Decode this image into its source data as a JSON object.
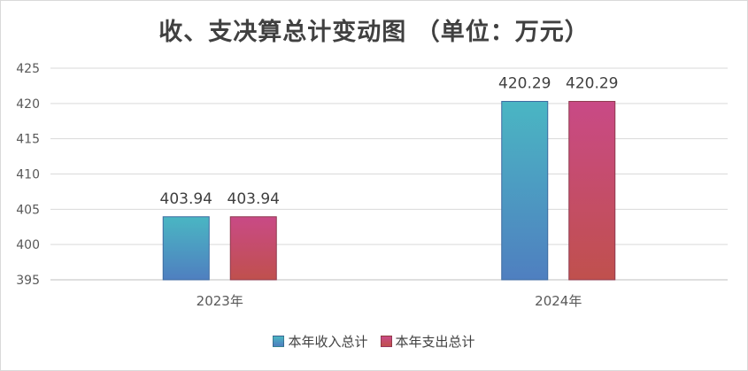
{
  "chart_data": {
    "type": "bar",
    "title": "收、支决算总计变动图 （单位：万元）",
    "categories": [
      "2023年",
      "2024年"
    ],
    "series": [
      {
        "name": "本年收入总计",
        "values": [
          403.94,
          420.29
        ],
        "labels": [
          "403.94",
          "420.29"
        ],
        "color_top": "#4ab6c3",
        "color_bottom": "#4f7fc0"
      },
      {
        "name": "本年支出总计",
        "values": [
          403.94,
          420.29
        ],
        "labels": [
          "403.94",
          "420.29"
        ],
        "color_top": "#c94a86",
        "color_bottom": "#c0504d"
      }
    ],
    "ylim": [
      395,
      425
    ],
    "yticks": [
      395,
      400,
      405,
      410,
      415,
      420,
      425
    ],
    "grid": true,
    "legend_position": "bottom"
  }
}
